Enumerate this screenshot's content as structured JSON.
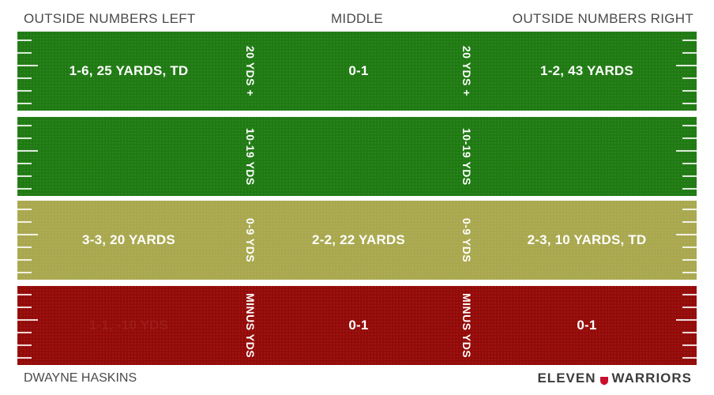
{
  "header": {
    "left": "OUTSIDE NUMBERS LEFT",
    "middle": "MIDDLE",
    "right": "OUTSIDE NUMBERS RIGHT"
  },
  "colors": {
    "green": "#1f7a12",
    "yellow": "#a9a84e",
    "red": "#930a08"
  },
  "rows": [
    {
      "zone": "20 YDS +",
      "left": "1-6, 25 YARDS, TD",
      "middle": "0-1",
      "right": "1-2, 43 YARDS",
      "color": "green"
    },
    {
      "zone": "10-19 YDS",
      "left": "",
      "middle": "",
      "right": "",
      "color": "green"
    },
    {
      "zone": "0-9 YDS",
      "left": "3-3, 20 YARDS",
      "middle": "2-2, 22 YARDS",
      "right": "2-3, 10 YARDS, TD",
      "color": "yellow"
    },
    {
      "zone": "MINUS YDS",
      "left": "1-1, -10 YDS",
      "middle": "0-1",
      "right": "0-1",
      "color": "red"
    }
  ],
  "footer": {
    "player": "DWAYNE HASKINS",
    "brand_left": "ELEVEN",
    "brand_right": "WARRIORS"
  }
}
